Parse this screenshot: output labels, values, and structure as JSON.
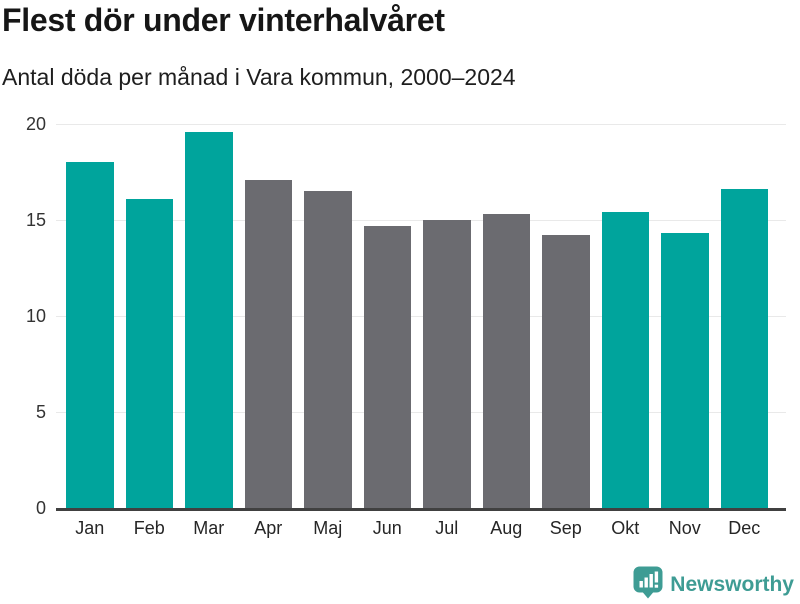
{
  "header": {
    "title": "Flest dör under vinterhalvåret",
    "subtitle": "Antal döda per månad i Vara kommun, 2000–2024"
  },
  "chart_data": {
    "type": "bar",
    "title": "Flest dör under vinterhalvåret",
    "subtitle": "Antal döda per månad i Vara kommun, 2000–2024",
    "categories": [
      "Jan",
      "Feb",
      "Mar",
      "Apr",
      "Maj",
      "Jun",
      "Jul",
      "Aug",
      "Sep",
      "Okt",
      "Nov",
      "Dec"
    ],
    "values": [
      18.0,
      16.1,
      19.6,
      17.1,
      16.5,
      14.7,
      15.0,
      15.3,
      14.2,
      15.4,
      14.3,
      16.6
    ],
    "bar_colors": [
      "teal",
      "teal",
      "teal",
      "gray",
      "gray",
      "gray",
      "gray",
      "gray",
      "gray",
      "teal",
      "teal",
      "teal"
    ],
    "palette": {
      "teal": "#00a49c",
      "gray": "#6b6b70"
    },
    "xlabel": "",
    "ylabel": "",
    "ylim": [
      0,
      20
    ],
    "yticks": [
      0,
      5,
      10,
      15,
      20
    ],
    "grid": true,
    "legend": "none"
  },
  "footer": {
    "brand": "Newsworthy",
    "brand_color": "#3e9c94",
    "logo_icon": "newsworthy-speech-bubble-bar-chart-icon"
  }
}
